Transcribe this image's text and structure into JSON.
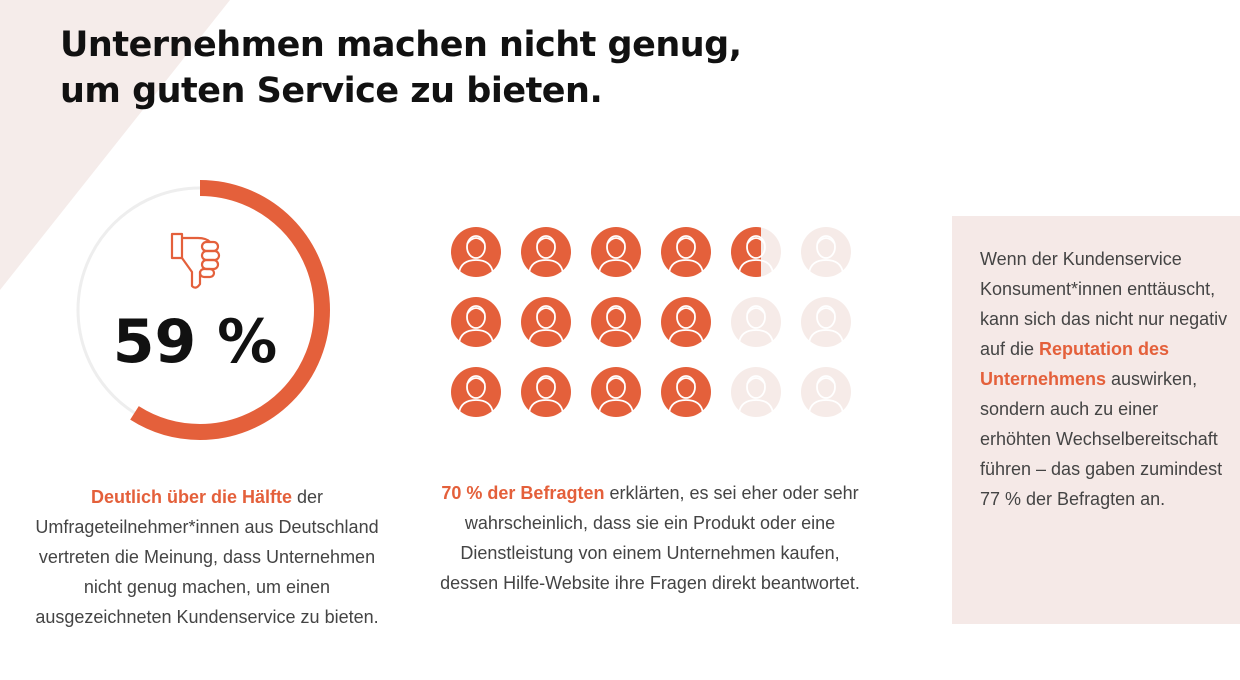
{
  "headline": {
    "line1": "Unternehmen machen nicht genug,",
    "line2": "um guten Service zu bieten."
  },
  "colors": {
    "accent": "#e4603b",
    "ring_track": "#eeeeee",
    "faded_icon": "#f6ebe8",
    "panel_bg": "#f5e9e7",
    "triangle_bg": "#f5ecea"
  },
  "stat_donut": {
    "icon": "thumbs-down-icon",
    "value_label": "59 %"
  },
  "caption_left": {
    "highlight": "Deutlich über die Hälfte",
    "text": " der Umfrageteilnehmer*innen aus Deutschland vertreten die Meinung, dass Unternehmen nicht genug machen, um einen ausgezeichneten Kundenservice zu bieten."
  },
  "caption_mid": {
    "highlight": "70 % der Befragten",
    "text": " erklärten, es sei eher oder sehr wahrscheinlich, dass sie ein Produkt oder eine Dienstleistung von einem Unternehmen kaufen, dessen Hilfe-Website ihre Fragen direkt beantwortet."
  },
  "side_panel": {
    "text_before": "Wenn der Kundenservice Konsument*innen enttäuscht, kann sich das nicht nur negativ auf die ",
    "highlight": "Reputation des Unternehmens",
    "text_after": " auswirken, sondern auch zu einer erhöhten Wechselbereitschaft führen – das gaben zumindest 77 % der Befragten an."
  },
  "chart_data": [
    {
      "type": "pie",
      "categories": [
        "filled",
        "remaining"
      ],
      "values": [
        59,
        41
      ],
      "title": "",
      "value_label": "59 %"
    },
    {
      "type": "pictogram",
      "rows": 3,
      "cols": 6,
      "total_icons": 18,
      "filled_icons": 12.6,
      "values": [
        70,
        30
      ],
      "unit": "%",
      "icon": "person-avatar-icon"
    }
  ]
}
